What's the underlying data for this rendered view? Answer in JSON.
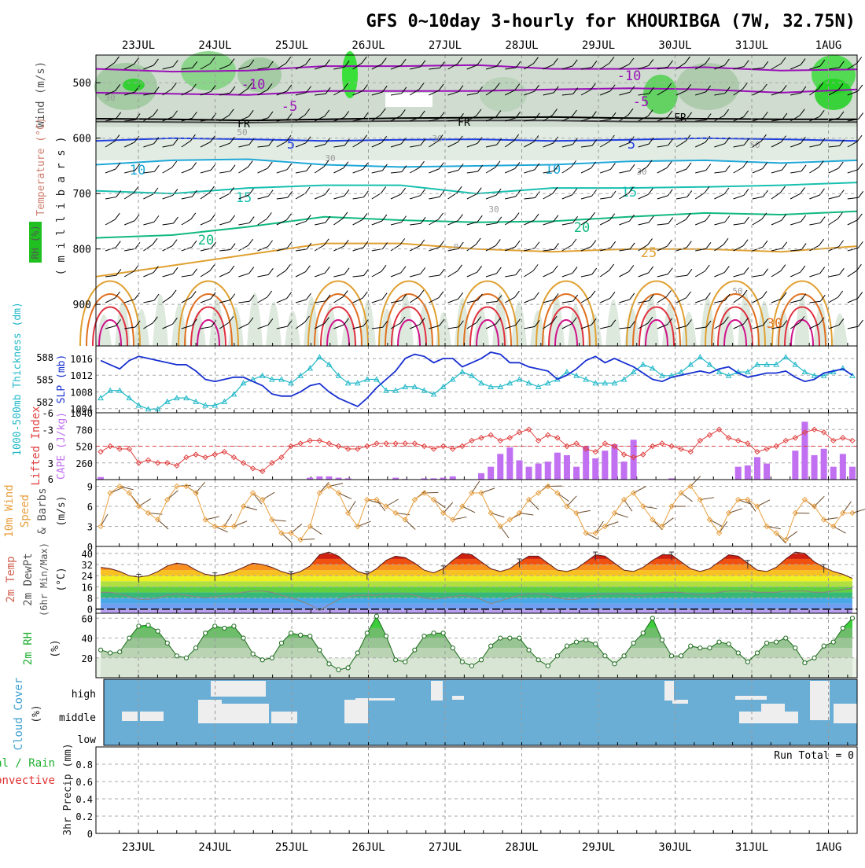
{
  "title": "GFS 0~10day 3-hourly for KHOURIBGA (7W, 32.75N)",
  "dates": [
    "23JUL",
    "24JUL",
    "25JUL",
    "26JUL",
    "27JUL",
    "28JUL",
    "29JUL",
    "30JUL",
    "31JUL",
    "1AUG"
  ],
  "run_total": "Run Total = 0",
  "colors": {
    "purple": "#9a10b8",
    "blue": "#2040e0",
    "cyan": "#20a8d8",
    "teal": "#18c0b0",
    "green": "#10b880",
    "orange": "#e0a030",
    "dorange": "#e07020",
    "red": "#e03040",
    "magenta": "#d0108a",
    "slp": "#1830d0",
    "thk": "#20b8c8",
    "li": "#e04040",
    "cape": "#c070f0",
    "wind10": "#e8a040",
    "rhgreen": "#20b030",
    "cloud": "#6aaed6"
  },
  "panels": {
    "upper": {
      "ylabel_wind": "Wind (m/s)",
      "ylabel_temp": "Temperature (°C)",
      "ylabel_mb": "( m i l l i b a r s )",
      "ylabel_rh": "RH (%)",
      "yticks": [
        "500",
        "600",
        "700",
        "800",
        "900"
      ],
      "temp_labels": [
        "-10",
        "-5",
        "5",
        "10",
        "15",
        "20",
        "25",
        "30",
        "-10",
        "-5",
        "5",
        "10",
        "15",
        "20"
      ],
      "freeze_label": "FR",
      "rh_labels": [
        "30",
        "50",
        "30",
        "30",
        "30",
        "0",
        "50",
        "30",
        "50"
      ]
    },
    "slp": {
      "ylabel_thk": "1000-500mb Thickness (dm)",
      "ylabel_slp": "SLP (mb)",
      "left_ticks": [
        "588",
        "585",
        "582"
      ],
      "right_ticks": [
        "1016",
        "1012",
        "1008",
        "1004"
      ]
    },
    "cape": {
      "ylabel_li": "Lifted Index",
      "ylabel_cape": "CAPE (J/kg)",
      "left_ticks": [
        "-3",
        "0",
        "3",
        "6",
        "-6"
      ],
      "right_ticks": [
        "1040",
        "780",
        "520",
        "260"
      ]
    },
    "wind": {
      "ylabel_1": "10m Wind",
      "ylabel_2": "Speed",
      "ylabel_3": "& Barbs",
      "ylabel_unit": "(m/s)",
      "ticks": [
        "9",
        "6",
        "3",
        "0"
      ]
    },
    "temp": {
      "ylabel_1": "2m Temp",
      "ylabel_2": "2m DewPt",
      "ylabel_3": "(6hr Min/Max)",
      "ylabel_unit": "(°C)",
      "ticks": [
        "40",
        "32",
        "24",
        "16",
        "8",
        "0"
      ]
    },
    "rh": {
      "ylabel": "2m RH",
      "ylabel_unit": "(%)",
      "ticks": [
        "60",
        "40",
        "20"
      ]
    },
    "cloud": {
      "ylabel": "Cloud Cover",
      "ylabel_unit": "(%)",
      "levels": [
        "high",
        "middle",
        "low"
      ]
    },
    "precip": {
      "ylabel_1": "Total / Rain",
      "ylabel_2": "Convective",
      "ylabel_3": "3hr Precip (mm)",
      "ticks": [
        "0.8",
        "0.6",
        "0.4",
        "0.2",
        "0"
      ]
    }
  },
  "chart_data": [
    {
      "type": "line",
      "panel": "slp",
      "name": "SLP (mb)",
      "x_unit": "3-hourly steps from 23JUL 00Z",
      "ylim": [
        1003,
        1019
      ],
      "values": [
        1015.5,
        1014.5,
        1013.5,
        1015.5,
        1016.5,
        1016,
        1015.5,
        1015,
        1014.5,
        1014.5,
        1013,
        1011,
        1010.5,
        1011,
        1011.5,
        1011.5,
        1010.5,
        1009.5,
        1007.5,
        1007,
        1007,
        1008,
        1009.5,
        1010,
        1008,
        1006.5,
        1005.5,
        1004.5,
        1006.5,
        1009,
        1011,
        1013,
        1016,
        1017,
        1016.5,
        1015,
        1016,
        1016,
        1014,
        1015,
        1016,
        1017.5,
        1017,
        1015,
        1015,
        1014,
        1013.5,
        1013,
        1011,
        1012,
        1013.5,
        1015.5,
        1016.5,
        1015,
        1016,
        1015,
        1014,
        1012.5,
        1011,
        1010.5,
        1011.5,
        1012,
        1012.5,
        1013,
        1012.5,
        1013.5,
        1014,
        1012.5,
        1011.5,
        1012,
        1012.5,
        1012.5,
        1013,
        1011.5,
        1010.5,
        1011,
        1012.5,
        1013,
        1013.5,
        1012
      ]
    },
    {
      "type": "line",
      "panel": "slp",
      "name": "Thickness (dm)",
      "ylim": [
        580.5,
        589.5
      ],
      "values": [
        582.5,
        583.5,
        583.5,
        582.5,
        581.5,
        581,
        581,
        582,
        582.5,
        582.5,
        582,
        581.5,
        581.5,
        582,
        583,
        584.5,
        585,
        585.5,
        585,
        585,
        584.5,
        585.5,
        586.5,
        588,
        587,
        585.5,
        584.5,
        584.5,
        585,
        585,
        583.5,
        583.5,
        584,
        584,
        583.5,
        583,
        584,
        585,
        586,
        585.5,
        584.5,
        584,
        584,
        584.5,
        585,
        584.5,
        584,
        584.5,
        585,
        586,
        585.5,
        585,
        584.5,
        584.5,
        584.5,
        585,
        586,
        587,
        586.5,
        585.5,
        585.5,
        586,
        587,
        588,
        587,
        586,
        585.5,
        586,
        586,
        587,
        587,
        587,
        588,
        587,
        586,
        585.5,
        585.5,
        586,
        586.5,
        585.5
      ]
    },
    {
      "type": "bar",
      "panel": "cape",
      "name": "CAPE (J/kg)",
      "ylim": [
        0,
        1040
      ],
      "values": [
        40,
        0,
        0,
        0,
        0,
        0,
        0,
        0,
        0,
        0,
        0,
        0,
        0,
        0,
        0,
        0,
        0,
        0,
        0,
        0,
        0,
        0,
        30,
        50,
        50,
        30,
        20,
        0,
        0,
        0,
        0,
        30,
        10,
        0,
        20,
        20,
        30,
        50,
        0,
        0,
        100,
        200,
        400,
        500,
        300,
        200,
        250,
        280,
        420,
        380,
        200,
        520,
        330,
        450,
        550,
        280,
        620,
        0,
        0,
        0,
        20,
        0,
        0,
        0,
        0,
        0,
        0,
        200,
        220,
        350,
        250,
        0,
        0,
        450,
        900,
        380,
        480,
        200,
        400,
        200
      ]
    },
    {
      "type": "line",
      "panel": "cape",
      "name": "Lifted Index",
      "ylim": [
        -6,
        6
      ],
      "values": [
        1,
        0,
        0.5,
        0.5,
        3,
        2.5,
        3,
        3,
        3.5,
        2,
        1.5,
        2,
        1.5,
        1,
        2,
        3,
        4,
        4.5,
        3,
        2,
        0,
        -0.5,
        -1,
        -1,
        -0.5,
        0,
        0.5,
        0.5,
        0,
        -0.5,
        -0.5,
        -0.5,
        -0.5,
        -0.5,
        0,
        0.5,
        0,
        0.5,
        0,
        -1,
        -1.5,
        -2,
        -1,
        -1.5,
        -2.5,
        -3,
        -1,
        -2,
        -1.5,
        0,
        -0.5,
        0.5,
        1,
        -0.5,
        0,
        1.5,
        2,
        1.5,
        0,
        -0.5,
        0,
        0.5,
        1,
        -1,
        -2,
        -3,
        -1.5,
        -1,
        -0.5,
        1,
        0.5,
        0,
        -1,
        -1.5,
        -2.5,
        -3,
        -2.5,
        -1,
        -1.5,
        -1
      ]
    },
    {
      "type": "line",
      "panel": "wind",
      "name": "10m Wind Speed (m/s)",
      "ylim": [
        0,
        10
      ],
      "values": [
        3,
        8,
        9,
        8,
        6,
        5,
        4,
        7,
        9,
        9,
        8,
        4,
        3,
        3,
        3,
        6,
        8,
        7,
        4,
        2,
        2,
        1,
        3,
        8,
        9,
        8,
        5,
        3,
        7,
        7,
        6,
        5,
        4,
        7,
        8,
        7,
        5,
        4,
        6,
        8,
        8,
        5,
        3,
        4,
        5,
        7,
        8,
        9,
        8,
        6,
        5,
        2,
        2,
        3,
        5,
        7,
        8,
        6,
        4,
        3,
        6,
        8,
        9,
        7,
        4,
        2,
        5,
        7,
        7,
        6,
        3,
        2,
        1,
        5,
        7,
        6,
        4,
        3,
        5,
        5
      ]
    },
    {
      "type": "line",
      "panel": "temp",
      "name": "2m Temp (°C)",
      "ylim": [
        -3,
        45
      ],
      "values": [
        30,
        29,
        27,
        24,
        23,
        24,
        27,
        31,
        33,
        32,
        28,
        25,
        24,
        25,
        27,
        30,
        33,
        32,
        30,
        27,
        25,
        27,
        31,
        39,
        41,
        38,
        32,
        27,
        25,
        29,
        35,
        38,
        37,
        33,
        28,
        26,
        29,
        35,
        40,
        39,
        34,
        29,
        27,
        29,
        34,
        38,
        38,
        33,
        28,
        27,
        29,
        34,
        39,
        38,
        33,
        28,
        27,
        30,
        35,
        39,
        39,
        34,
        29,
        27,
        29,
        34,
        39,
        38,
        33,
        28,
        27,
        30,
        36,
        41,
        40,
        34,
        30,
        27,
        25,
        22
      ]
    },
    {
      "type": "line",
      "panel": "temp",
      "name": "2m DewPt (°C)",
      "ylim": [
        -3,
        45
      ],
      "values": [
        12,
        12,
        11,
        9,
        7,
        7,
        8,
        10,
        11,
        10,
        9,
        8,
        9,
        10,
        11,
        12,
        13,
        13,
        12,
        10,
        8,
        6,
        3,
        -1,
        3,
        7,
        9,
        10,
        10,
        10,
        11,
        11,
        11,
        10,
        8,
        7,
        8,
        9,
        10,
        9,
        7,
        4,
        6,
        8,
        10,
        11,
        11,
        10,
        8,
        7,
        7,
        9,
        10,
        11,
        11,
        11,
        10,
        10,
        11,
        12,
        12,
        12,
        11,
        10,
        11,
        12,
        13,
        13,
        13,
        12,
        12,
        12,
        13,
        13,
        13,
        12,
        12,
        13,
        14,
        15
      ]
    },
    {
      "type": "line",
      "panel": "rh",
      "name": "2m RH (%)",
      "ylim": [
        0,
        65
      ],
      "values": [
        28,
        25,
        26,
        40,
        52,
        53,
        47,
        35,
        22,
        20,
        30,
        45,
        52,
        50,
        52,
        40,
        24,
        18,
        20,
        35,
        45,
        43,
        42,
        28,
        14,
        8,
        10,
        25,
        45,
        62,
        42,
        18,
        16,
        28,
        42,
        45,
        45,
        30,
        16,
        12,
        18,
        32,
        40,
        40,
        40,
        28,
        18,
        12,
        22,
        32,
        36,
        38,
        34,
        22,
        14,
        22,
        35,
        45,
        60,
        38,
        22,
        22,
        32,
        30,
        30,
        36,
        34,
        25,
        16,
        25,
        35,
        36,
        40,
        30,
        15,
        20,
        32,
        36,
        50,
        60
      ]
    },
    {
      "type": "area",
      "panel": "cloud",
      "name": "Cloud Cover (%)",
      "note": "blue background = clear; white blocks = cloud at high/middle levels"
    },
    {
      "type": "bar",
      "panel": "precip",
      "name": "3hr Precip (mm)",
      "ylim": [
        0,
        1
      ],
      "values": []
    }
  ]
}
